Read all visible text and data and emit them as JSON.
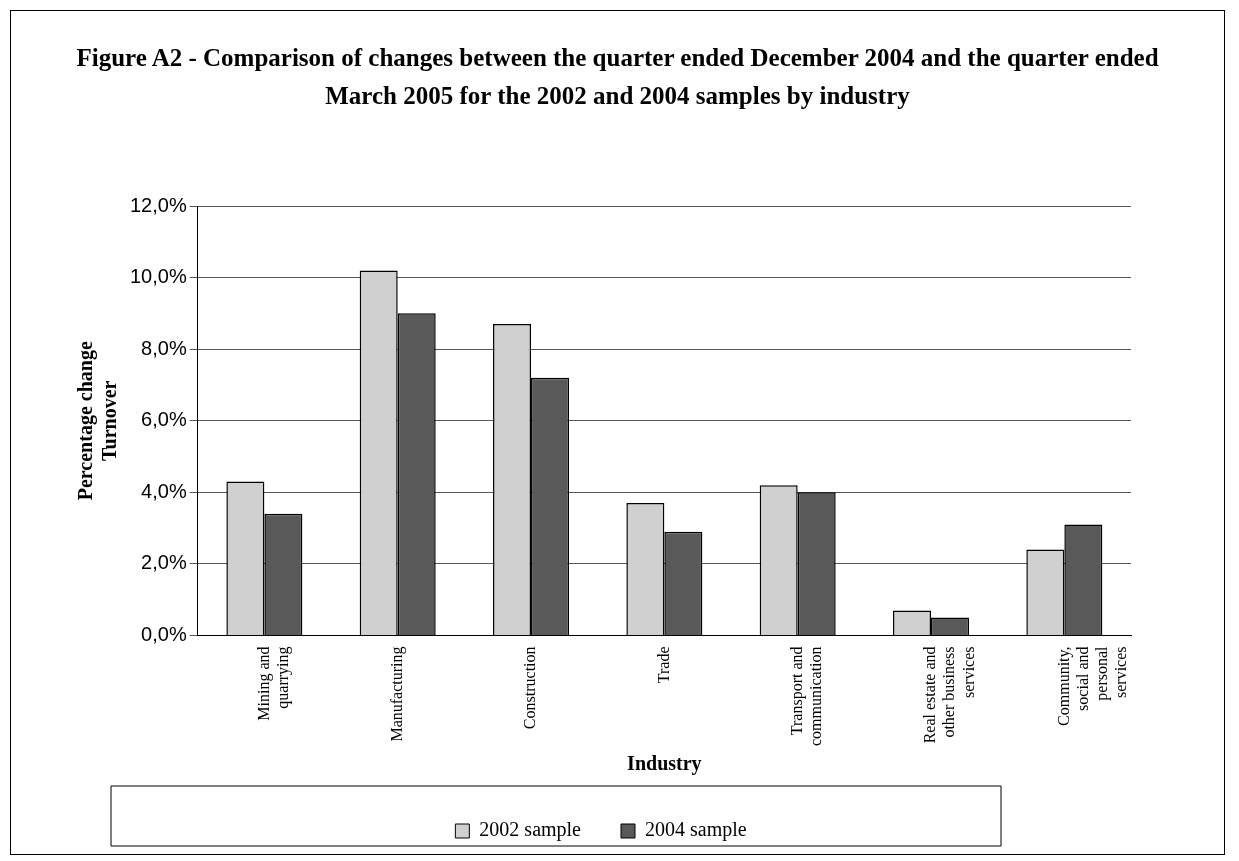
{
  "chart_data": {
    "type": "bar",
    "title": "Figure A2 - Comparison of changes between the quarter ended December 2004 and the quarter ended March 2005 for the 2002 and 2004 samples by industry",
    "xlabel": "Industry",
    "ylabel": "Percentage change\nTurnover",
    "categories": [
      "Mining and quarrying",
      "Manufacturing",
      "Construction",
      "Trade",
      "Transport and communication",
      "Real estate and other business services",
      "Community, social and personal services"
    ],
    "series": [
      {
        "name": "2002 sample",
        "color": "#d0d0d0",
        "values": [
          4.3,
          10.2,
          8.7,
          3.7,
          4.2,
          0.7,
          2.4
        ]
      },
      {
        "name": "2004 sample",
        "color": "#595959",
        "values": [
          3.4,
          9.0,
          7.2,
          2.9,
          4.0,
          0.5,
          3.1
        ]
      }
    ],
    "ylim": [
      0,
      12
    ],
    "yticks": [
      {
        "value": 0,
        "label": "0,0%"
      },
      {
        "value": 2,
        "label": "2,0%"
      },
      {
        "value": 4,
        "label": "4,0%"
      },
      {
        "value": 6,
        "label": "6,0%"
      },
      {
        "value": 8,
        "label": "8,0%"
      },
      {
        "value": 10,
        "label": "10,0%"
      },
      {
        "value": 12,
        "label": "12,0%"
      }
    ],
    "grid": "y",
    "legend": "bottom"
  }
}
